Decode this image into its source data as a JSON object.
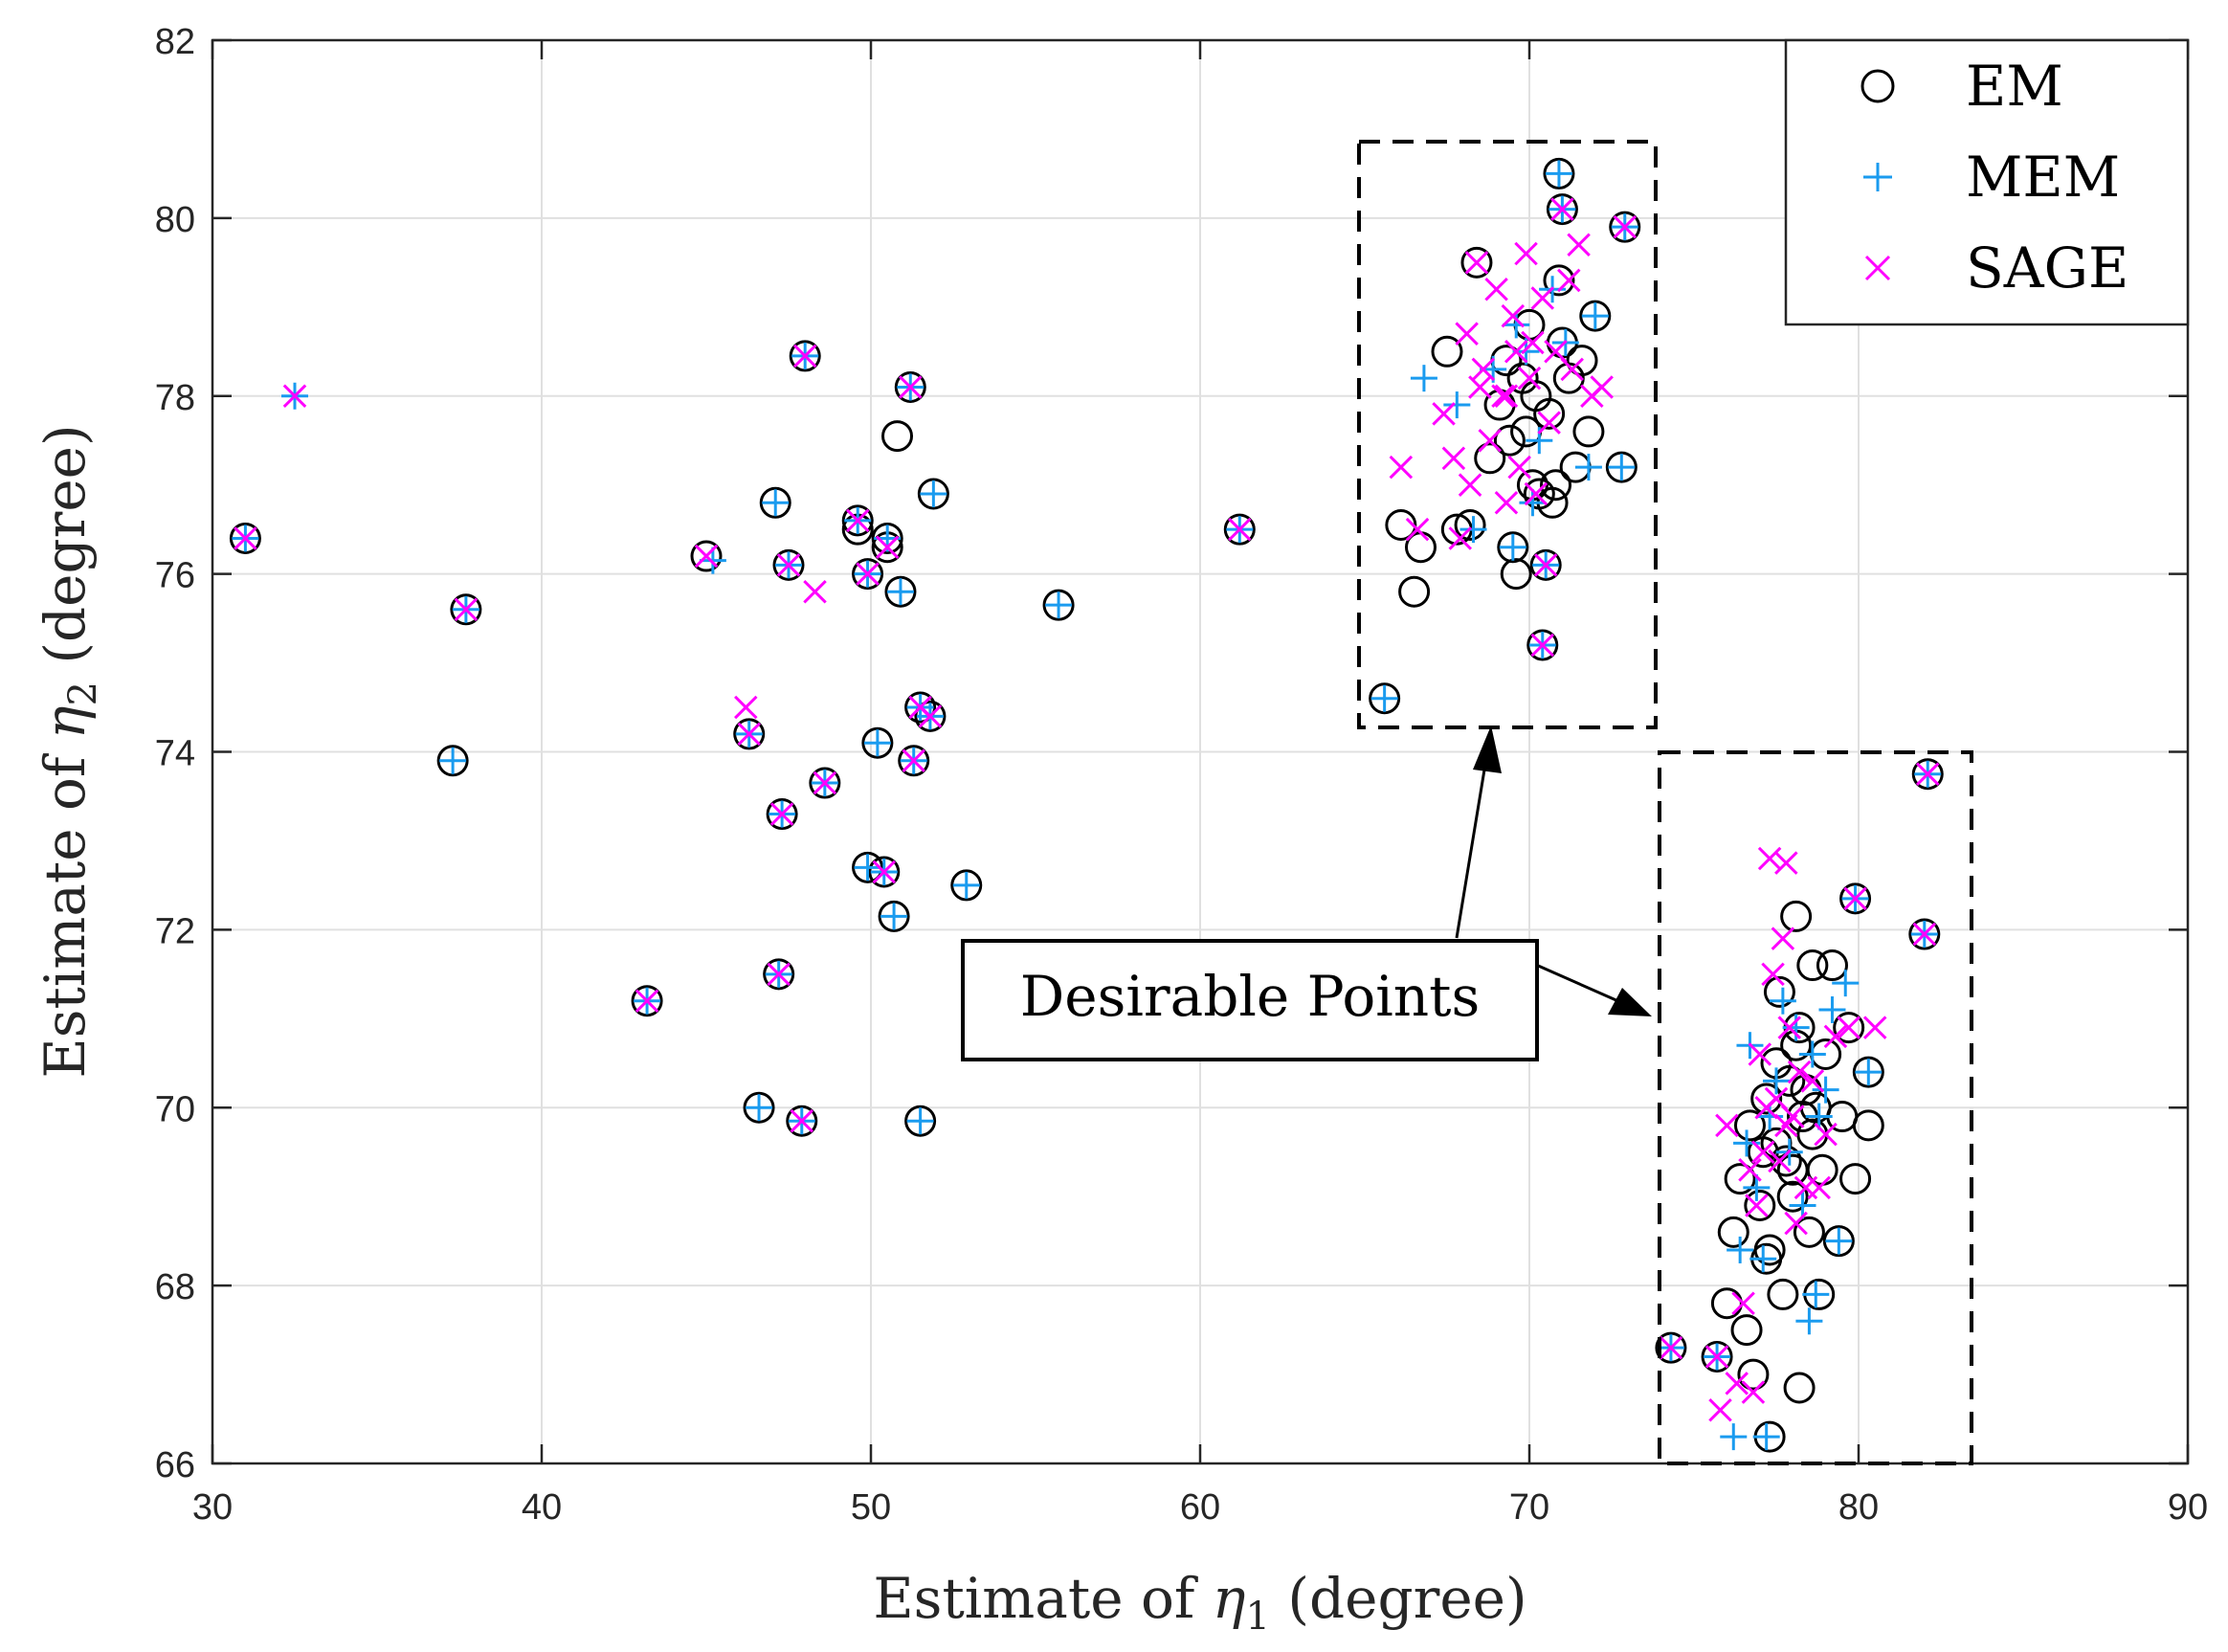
{
  "chart_data": {
    "type": "scatter",
    "title": "",
    "xlabel": "Estimate of η1 (degree)",
    "ylabel": "Estimate of η2 (degree)",
    "xlabel_parts": {
      "pre": "Estimate of ",
      "sym": "η",
      "sub": "1",
      "post": " (degree)"
    },
    "ylabel_parts": {
      "pre": "Estimate of ",
      "sym": "η",
      "sub": "2",
      "post": " (degree)"
    },
    "xlim": [
      30,
      90
    ],
    "ylim": [
      66,
      82
    ],
    "xticks": [
      30,
      40,
      50,
      60,
      70,
      80,
      90
    ],
    "yticks": [
      66,
      68,
      70,
      72,
      74,
      76,
      78,
      80,
      82
    ],
    "grid": true,
    "legend_position": "top-right",
    "colors": {
      "EM": "#000000",
      "MEM": "#1a9bef",
      "SAGE": "#ff00ff",
      "grid": "#e0e0e0",
      "axis": "#262626"
    },
    "series": [
      {
        "name": "EM",
        "marker": "circle",
        "points": [
          [
            31.0,
            76.4
          ],
          [
            37.3,
            73.9
          ],
          [
            37.7,
            75.6
          ],
          [
            43.2,
            71.2
          ],
          [
            45.0,
            76.2
          ],
          [
            46.3,
            74.2
          ],
          [
            46.6,
            70.0
          ],
          [
            47.1,
            76.8
          ],
          [
            47.2,
            71.5
          ],
          [
            47.3,
            73.3
          ],
          [
            47.5,
            76.1
          ],
          [
            47.9,
            69.85
          ],
          [
            48.0,
            78.45
          ],
          [
            48.6,
            73.65
          ],
          [
            49.6,
            76.6
          ],
          [
            49.6,
            76.5
          ],
          [
            49.9,
            72.7
          ],
          [
            49.9,
            76.0
          ],
          [
            50.2,
            74.1
          ],
          [
            50.4,
            72.65
          ],
          [
            50.5,
            76.4
          ],
          [
            50.5,
            76.3
          ],
          [
            50.7,
            72.15
          ],
          [
            50.8,
            77.55
          ],
          [
            50.9,
            75.8
          ],
          [
            51.2,
            78.1
          ],
          [
            51.3,
            73.9
          ],
          [
            51.5,
            74.5
          ],
          [
            51.5,
            69.85
          ],
          [
            51.8,
            74.4
          ],
          [
            51.9,
            76.9
          ],
          [
            52.9,
            72.5
          ],
          [
            55.7,
            75.65
          ],
          [
            61.2,
            76.5
          ],
          [
            65.6,
            74.6
          ],
          [
            66.1,
            76.55
          ],
          [
            66.5,
            75.8
          ],
          [
            66.7,
            76.3
          ],
          [
            67.5,
            78.5
          ],
          [
            67.8,
            76.5
          ],
          [
            68.2,
            76.55
          ],
          [
            68.4,
            79.5
          ],
          [
            68.8,
            77.3
          ],
          [
            69.1,
            77.9
          ],
          [
            69.3,
            78.4
          ],
          [
            69.5,
            76.3
          ],
          [
            69.6,
            76.0
          ],
          [
            69.8,
            78.2
          ],
          [
            69.9,
            77.6
          ],
          [
            70.0,
            78.8
          ],
          [
            70.1,
            77.0
          ],
          [
            70.3,
            76.9
          ],
          [
            70.4,
            75.2
          ],
          [
            70.5,
            76.1
          ],
          [
            70.6,
            77.8
          ],
          [
            70.7,
            76.8
          ],
          [
            70.9,
            79.3
          ],
          [
            71.0,
            78.6
          ],
          [
            71.0,
            80.1
          ],
          [
            71.2,
            78.2
          ],
          [
            71.4,
            77.2
          ],
          [
            71.6,
            78.4
          ],
          [
            71.8,
            77.6
          ],
          [
            72.0,
            78.9
          ],
          [
            72.8,
            77.2
          ],
          [
            72.9,
            79.9
          ],
          [
            70.9,
            80.5
          ],
          [
            70.2,
            78.0
          ],
          [
            69.4,
            77.5
          ],
          [
            70.8,
            77.0
          ],
          [
            74.3,
            67.3
          ],
          [
            75.7,
            67.2
          ],
          [
            76.0,
            67.8
          ],
          [
            76.2,
            68.6
          ],
          [
            76.4,
            69.2
          ],
          [
            76.6,
            67.5
          ],
          [
            76.7,
            69.8
          ],
          [
            76.8,
            67.0
          ],
          [
            77.0,
            68.9
          ],
          [
            77.1,
            69.5
          ],
          [
            77.2,
            70.1
          ],
          [
            77.3,
            66.3
          ],
          [
            77.3,
            68.4
          ],
          [
            77.5,
            70.5
          ],
          [
            77.6,
            71.3
          ],
          [
            77.7,
            67.9
          ],
          [
            77.8,
            69.4
          ],
          [
            77.9,
            70.3
          ],
          [
            78.0,
            69.0
          ],
          [
            78.1,
            70.7
          ],
          [
            78.1,
            72.15
          ],
          [
            78.2,
            66.85
          ],
          [
            78.3,
            69.9
          ],
          [
            78.4,
            70.2
          ],
          [
            78.5,
            68.6
          ],
          [
            78.6,
            71.6
          ],
          [
            78.7,
            70.0
          ],
          [
            78.8,
            67.9
          ],
          [
            78.9,
            69.3
          ],
          [
            79.0,
            70.6
          ],
          [
            79.2,
            71.6
          ],
          [
            79.4,
            68.5
          ],
          [
            79.5,
            69.9
          ],
          [
            79.7,
            70.9
          ],
          [
            79.9,
            72.35
          ],
          [
            79.9,
            69.2
          ],
          [
            80.3,
            70.4
          ],
          [
            80.3,
            69.8
          ],
          [
            82.0,
            71.95
          ],
          [
            82.1,
            73.75
          ],
          [
            77.5,
            69.6
          ],
          [
            78.0,
            69.3
          ],
          [
            78.6,
            69.7
          ],
          [
            77.2,
            68.3
          ],
          [
            78.2,
            70.9
          ]
        ]
      },
      {
        "name": "MEM",
        "marker": "plus",
        "points": [
          [
            31.0,
            76.4
          ],
          [
            32.5,
            78.0
          ],
          [
            37.3,
            73.9
          ],
          [
            37.7,
            75.6
          ],
          [
            43.2,
            71.2
          ],
          [
            45.2,
            76.15
          ],
          [
            46.3,
            74.2
          ],
          [
            46.6,
            70.0
          ],
          [
            47.1,
            76.8
          ],
          [
            47.2,
            71.5
          ],
          [
            47.3,
            73.3
          ],
          [
            47.5,
            76.1
          ],
          [
            47.9,
            69.85
          ],
          [
            48.0,
            78.45
          ],
          [
            48.6,
            73.65
          ],
          [
            49.6,
            76.6
          ],
          [
            49.9,
            72.7
          ],
          [
            49.9,
            76.0
          ],
          [
            50.2,
            74.1
          ],
          [
            50.4,
            72.65
          ],
          [
            50.5,
            76.4
          ],
          [
            50.7,
            72.15
          ],
          [
            50.9,
            75.8
          ],
          [
            51.2,
            78.1
          ],
          [
            51.3,
            73.9
          ],
          [
            51.5,
            74.5
          ],
          [
            51.5,
            69.85
          ],
          [
            51.8,
            74.4
          ],
          [
            51.9,
            76.9
          ],
          [
            52.9,
            72.5
          ],
          [
            55.7,
            75.65
          ],
          [
            61.2,
            76.5
          ],
          [
            65.6,
            74.6
          ],
          [
            66.8,
            78.2
          ],
          [
            67.8,
            77.9
          ],
          [
            68.3,
            76.5
          ],
          [
            69.5,
            76.3
          ],
          [
            70.4,
            75.2
          ],
          [
            70.5,
            76.1
          ],
          [
            70.9,
            80.5
          ],
          [
            71.0,
            80.1
          ],
          [
            71.1,
            78.6
          ],
          [
            71.8,
            77.2
          ],
          [
            72.0,
            78.9
          ],
          [
            72.8,
            77.2
          ],
          [
            72.9,
            79.9
          ],
          [
            69.9,
            78.5
          ],
          [
            70.3,
            77.5
          ],
          [
            70.1,
            76.8
          ],
          [
            68.9,
            78.3
          ],
          [
            69.6,
            78.8
          ],
          [
            70.7,
            79.2
          ],
          [
            74.3,
            67.3
          ],
          [
            75.7,
            67.2
          ],
          [
            76.2,
            66.3
          ],
          [
            76.4,
            68.4
          ],
          [
            76.6,
            69.6
          ],
          [
            76.7,
            70.7
          ],
          [
            76.9,
            69.1
          ],
          [
            77.1,
            68.3
          ],
          [
            77.3,
            69.9
          ],
          [
            77.5,
            70.3
          ],
          [
            77.7,
            71.2
          ],
          [
            77.9,
            69.5
          ],
          [
            78.1,
            70.9
          ],
          [
            78.3,
            68.9
          ],
          [
            78.5,
            67.6
          ],
          [
            78.6,
            70.6
          ],
          [
            78.8,
            69.9
          ],
          [
            79.0,
            70.2
          ],
          [
            79.2,
            71.1
          ],
          [
            79.4,
            68.5
          ],
          [
            79.6,
            71.4
          ],
          [
            79.9,
            72.35
          ],
          [
            80.3,
            70.4
          ],
          [
            82.0,
            71.95
          ],
          [
            82.1,
            73.75
          ],
          [
            77.2,
            66.3
          ],
          [
            78.7,
            67.9
          ]
        ]
      },
      {
        "name": "SAGE",
        "marker": "x",
        "points": [
          [
            31.0,
            76.4
          ],
          [
            32.5,
            78.0
          ],
          [
            37.7,
            75.6
          ],
          [
            43.2,
            71.2
          ],
          [
            45.0,
            76.2
          ],
          [
            46.2,
            74.5
          ],
          [
            46.3,
            74.2
          ],
          [
            47.2,
            71.5
          ],
          [
            47.3,
            73.3
          ],
          [
            47.5,
            76.1
          ],
          [
            47.9,
            69.85
          ],
          [
            48.0,
            78.45
          ],
          [
            48.3,
            75.8
          ],
          [
            48.6,
            73.65
          ],
          [
            49.6,
            76.6
          ],
          [
            49.9,
            76.0
          ],
          [
            50.4,
            72.65
          ],
          [
            50.5,
            76.3
          ],
          [
            51.2,
            78.1
          ],
          [
            51.3,
            73.9
          ],
          [
            51.5,
            74.5
          ],
          [
            51.8,
            74.4
          ],
          [
            61.2,
            76.5
          ],
          [
            66.1,
            77.2
          ],
          [
            66.6,
            76.5
          ],
          [
            67.4,
            77.8
          ],
          [
            67.7,
            77.3
          ],
          [
            67.9,
            76.4
          ],
          [
            68.1,
            78.7
          ],
          [
            68.2,
            77.0
          ],
          [
            68.4,
            79.5
          ],
          [
            68.6,
            78.3
          ],
          [
            68.8,
            77.5
          ],
          [
            69.0,
            79.2
          ],
          [
            69.2,
            78.0
          ],
          [
            69.3,
            76.8
          ],
          [
            69.5,
            78.9
          ],
          [
            69.7,
            77.2
          ],
          [
            69.9,
            79.6
          ],
          [
            70.0,
            78.2
          ],
          [
            70.2,
            76.9
          ],
          [
            70.4,
            79.1
          ],
          [
            70.6,
            77.7
          ],
          [
            70.8,
            78.5
          ],
          [
            71.0,
            80.1
          ],
          [
            71.2,
            79.3
          ],
          [
            71.5,
            79.7
          ],
          [
            71.9,
            78.0
          ],
          [
            72.2,
            78.1
          ],
          [
            72.9,
            79.9
          ],
          [
            70.5,
            76.1
          ],
          [
            70.4,
            75.2
          ],
          [
            69.6,
            78.5
          ],
          [
            70.1,
            78.6
          ],
          [
            68.5,
            78.1
          ],
          [
            69.3,
            78.0
          ],
          [
            71.3,
            78.3
          ],
          [
            74.3,
            67.3
          ],
          [
            75.7,
            67.2
          ],
          [
            75.8,
            66.6
          ],
          [
            76.0,
            69.8
          ],
          [
            76.3,
            66.9
          ],
          [
            76.5,
            67.8
          ],
          [
            76.7,
            69.3
          ],
          [
            76.9,
            68.9
          ],
          [
            77.0,
            70.6
          ],
          [
            77.1,
            69.5
          ],
          [
            77.3,
            72.8
          ],
          [
            77.4,
            71.5
          ],
          [
            77.5,
            70.1
          ],
          [
            77.6,
            69.4
          ],
          [
            77.7,
            71.9
          ],
          [
            77.8,
            72.75
          ],
          [
            77.9,
            70.9
          ],
          [
            78.0,
            69.9
          ],
          [
            78.1,
            68.7
          ],
          [
            78.2,
            70.4
          ],
          [
            78.4,
            69.1
          ],
          [
            78.6,
            70.3
          ],
          [
            78.8,
            69.1
          ],
          [
            79.0,
            69.7
          ],
          [
            79.3,
            70.8
          ],
          [
            79.7,
            70.9
          ],
          [
            79.9,
            72.35
          ],
          [
            80.5,
            70.9
          ],
          [
            82.0,
            71.95
          ],
          [
            82.1,
            73.75
          ],
          [
            76.8,
            66.8
          ],
          [
            77.2,
            70.0
          ],
          [
            77.8,
            69.8
          ]
        ]
      }
    ],
    "annotations": [
      {
        "text": "Desirable Points",
        "type": "callout"
      }
    ]
  }
}
